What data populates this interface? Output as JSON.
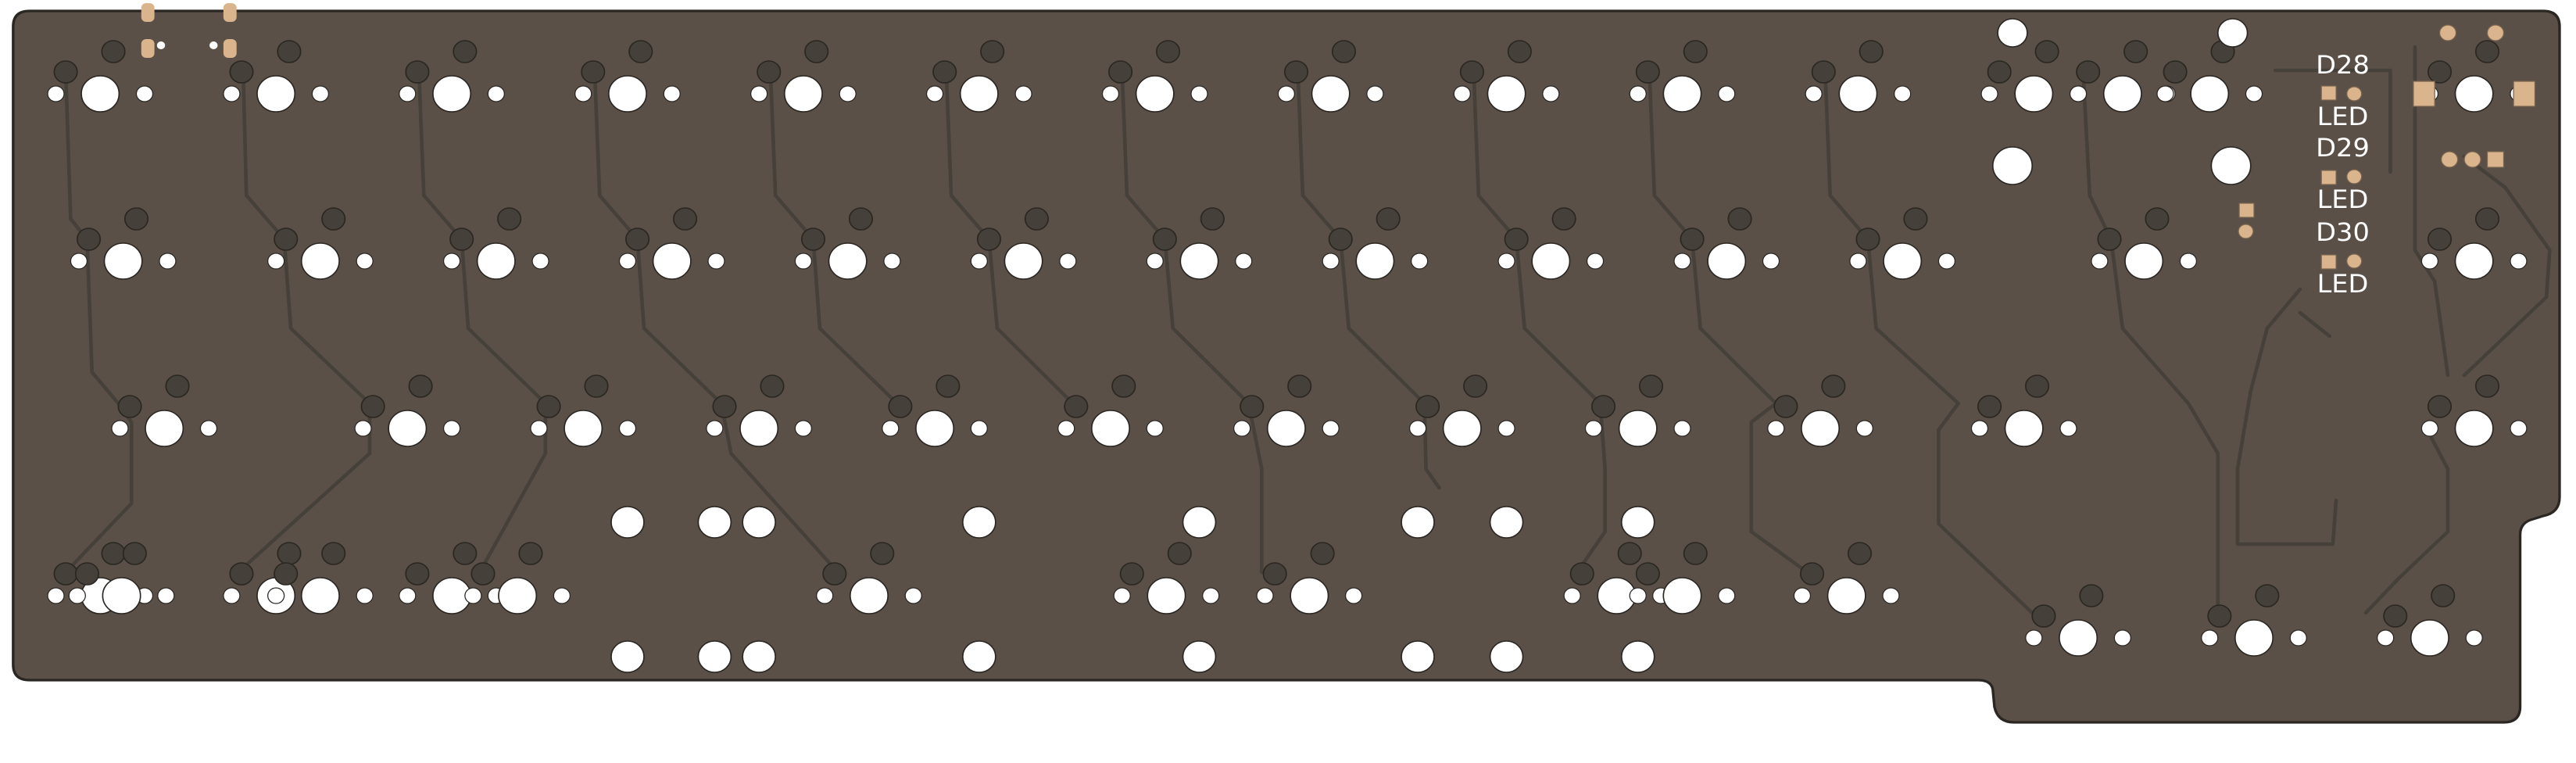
{
  "board": {
    "substrate_color": "#5b5047",
    "trace_color": "#45403a",
    "pad_color": "#454039",
    "copper_color": "#d9b48c",
    "hole_color": "#ffffff"
  },
  "leds": [
    {
      "ref": "D28",
      "label": "LED"
    },
    {
      "ref": "D29",
      "label": "LED"
    },
    {
      "ref": "D30",
      "label": "LED"
    }
  ],
  "icons": {
    "usb_connector": "usb-connector-icon",
    "mounting_hole": "mounting-hole-icon"
  }
}
